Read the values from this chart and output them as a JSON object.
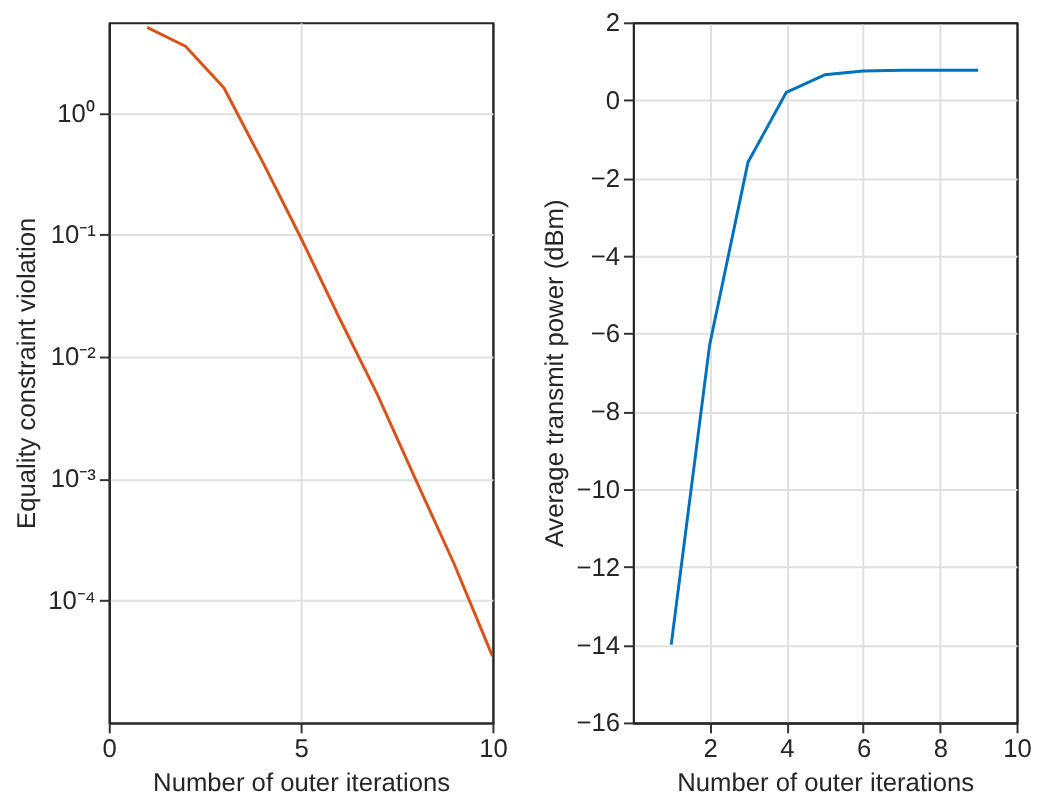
{
  "chart_data": [
    {
      "type": "line",
      "xlabel": "Number of outer iterations",
      "ylabel": "Equality constraint violation",
      "log": "y",
      "grid": true,
      "x": [
        1,
        2,
        3,
        4,
        5,
        6,
        7,
        8,
        9,
        10
      ],
      "series": [
        {
          "color": "#d95319",
          "values": [
            5,
            3.5,
            1.6,
            0.4,
            0.095,
            0.021,
            0.0049,
            0.00098,
            0.0002,
            3.5e-05
          ]
        }
      ],
      "xlim": [
        0,
        10
      ],
      "xticks": [
        0,
        5,
        10
      ],
      "ylim": [
        1e-05,
        5.5
      ],
      "yticks": [
        {
          "value": 0.0001,
          "label": "10⁻⁴"
        },
        {
          "value": 0.001,
          "label": "10⁻³"
        },
        {
          "value": 0.01,
          "label": "10⁻²"
        },
        {
          "value": 0.1,
          "label": "10⁻¹"
        },
        {
          "value": 1,
          "label": "10⁰"
        }
      ]
    },
    {
      "type": "line",
      "xlabel": "Number of outer iterations",
      "ylabel": "Average transmit power (dBm)",
      "grid": true,
      "x": [
        1,
        2,
        3,
        4,
        5,
        6,
        7,
        8,
        9
      ],
      "series": [
        {
          "color": "#0072bd",
          "values": [
            -14,
            -6.3,
            -1.6,
            0.2,
            0.65,
            0.75,
            0.77,
            0.77,
            0.77
          ]
        }
      ],
      "xlim": [
        0,
        10
      ],
      "xticks": [
        2,
        4,
        6,
        8,
        10
      ],
      "ylim": [
        -16,
        2
      ],
      "yticks": [
        -16,
        -14,
        -12,
        -10,
        -8,
        -6,
        -4,
        -2,
        0,
        2
      ]
    }
  ]
}
